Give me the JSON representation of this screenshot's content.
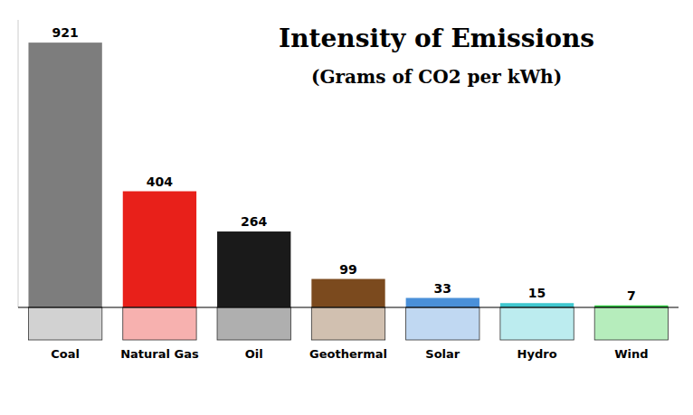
{
  "chart_data": {
    "type": "bar",
    "title": "Intensity of Emissions",
    "subtitle": "(Grams of CO2 per kWh)",
    "categories": [
      "Coal",
      "Natural Gas",
      "Oil",
      "Geothermal",
      "Solar",
      "Hydro",
      "Wind"
    ],
    "values": [
      921,
      404,
      264,
      99,
      33,
      15,
      7
    ],
    "colors": [
      "#7d7d7d",
      "#e8201a",
      "#1a1a1a",
      "#7b4a1e",
      "#4a90d9",
      "#40c8d0",
      "#2ecc40"
    ],
    "ylim": [
      0,
      1000
    ],
    "data_labels": true,
    "tick_labels": "x",
    "grid": false
  }
}
